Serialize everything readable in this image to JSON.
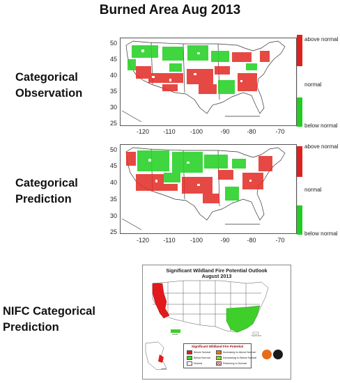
{
  "title": "Burned Area Aug 2013",
  "rows": [
    {
      "label_lines": [
        "Categorical",
        "Observation"
      ]
    },
    {
      "label_lines": [
        "Categorical",
        "Prediction"
      ]
    },
    {
      "label_lines": [
        "NIFC Categorical",
        "Prediction"
      ]
    }
  ],
  "map_axes": {
    "lat_ticks": [
      "50",
      "45",
      "40",
      "35",
      "30",
      "25"
    ],
    "lon_ticks": [
      "-120",
      "-110",
      "-100",
      "-90",
      "-80",
      "-70"
    ]
  },
  "colorbar": {
    "above": "above normal",
    "normal": "normal",
    "below": "below normal",
    "colors": {
      "above": "#e0201c",
      "normal": "#ffffff",
      "below": "#22cc22"
    }
  },
  "nifc": {
    "title_line1": "Significant Wildland Fire Potential Outlook",
    "title_line2": "August 2013",
    "legend_title": "Significant Wildland Fire Potential",
    "legend_items": [
      "Above Normal",
      "Below Normal",
      "Normal",
      "Increasing to Above Normal",
      "Decreasing to Below Normal",
      "Returning to Normal"
    ],
    "region_labels": {
      "hawaii": "Hawaii",
      "alaska": "Alaska",
      "puerto_rico": "Puerto Rico"
    },
    "colors": {
      "above": "#e31a1c",
      "below": "#3fcf2a",
      "normal": "#ffffff"
    }
  }
}
